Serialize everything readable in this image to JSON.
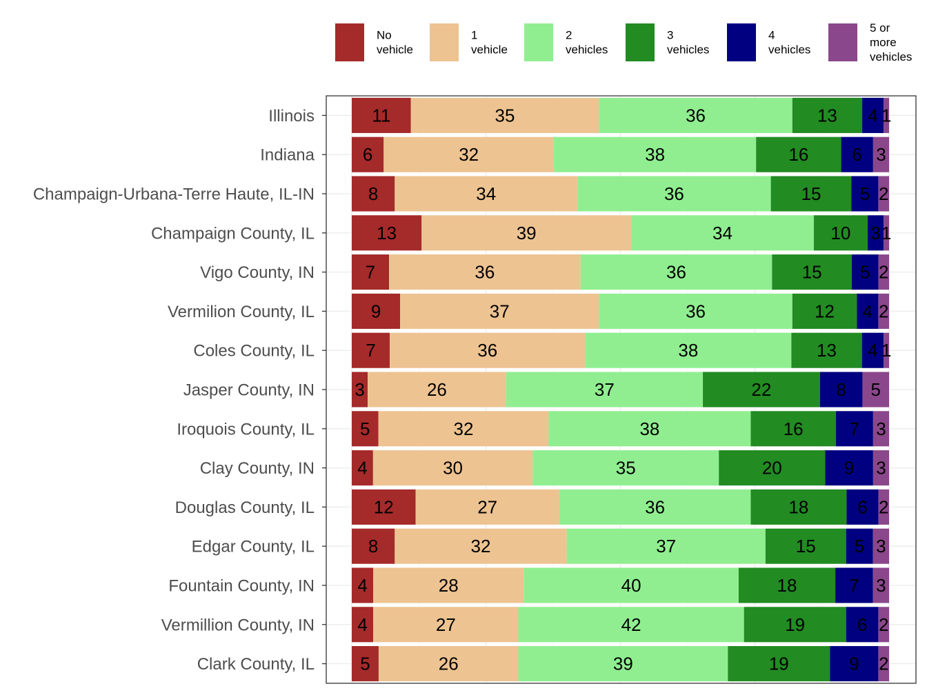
{
  "chart_data": {
    "type": "bar",
    "orientation": "horizontal",
    "stacked": true,
    "normalized": true,
    "title": "",
    "xlabel": "",
    "ylabel": "",
    "xlim": [
      0,
      100
    ],
    "grid": true,
    "legend_position": "top",
    "legend": [
      {
        "key": "no",
        "label": [
          "No",
          "vehicle"
        ],
        "color": "#A52A2A"
      },
      {
        "key": "v1",
        "label": [
          "1",
          "vehicle"
        ],
        "color": "#EDC391"
      },
      {
        "key": "v2",
        "label": [
          "2",
          "vehicles"
        ],
        "color": "#90EE90"
      },
      {
        "key": "v3",
        "label": [
          "3",
          "vehicles"
        ],
        "color": "#228B22"
      },
      {
        "key": "v4",
        "label": [
          "4",
          "vehicles"
        ],
        "color": "#000080"
      },
      {
        "key": "v5",
        "label": [
          "5 or",
          "more",
          "vehicles"
        ],
        "color": "#8B478B"
      }
    ],
    "categories": [
      "Illinois",
      "Indiana",
      "Champaign-Urbana-Terre Haute, IL-IN",
      "Champaign County, IL",
      "Vigo County, IN",
      "Vermilion County, IL",
      "Coles County, IL",
      "Jasper County, IN",
      "Iroquois County, IL",
      "Clay County, IN",
      "Douglas County, IL",
      "Edgar County, IL",
      "Fountain County, IN",
      "Vermillion County, IN",
      "Clark County, IL"
    ],
    "series": [
      {
        "name": "No vehicle",
        "values": [
          11,
          6,
          8,
          13,
          7,
          9,
          7,
          3,
          5,
          4,
          12,
          8,
          4,
          4,
          5
        ]
      },
      {
        "name": "1 vehicle",
        "values": [
          35,
          32,
          34,
          39,
          36,
          37,
          36,
          26,
          32,
          30,
          27,
          32,
          28,
          27,
          26
        ]
      },
      {
        "name": "2 vehicles",
        "values": [
          36,
          38,
          36,
          34,
          36,
          36,
          38,
          37,
          38,
          35,
          36,
          37,
          40,
          42,
          39
        ]
      },
      {
        "name": "3 vehicles",
        "values": [
          13,
          16,
          15,
          10,
          15,
          12,
          13,
          22,
          16,
          20,
          18,
          15,
          18,
          19,
          19
        ]
      },
      {
        "name": "4 vehicles",
        "values": [
          4,
          6,
          5,
          3,
          5,
          4,
          4,
          8,
          7,
          9,
          6,
          5,
          7,
          6,
          9
        ]
      },
      {
        "name": "5 or more vehicles",
        "values": [
          1,
          3,
          2,
          1,
          2,
          2,
          1,
          5,
          3,
          3,
          2,
          3,
          3,
          2,
          2
        ]
      }
    ]
  }
}
